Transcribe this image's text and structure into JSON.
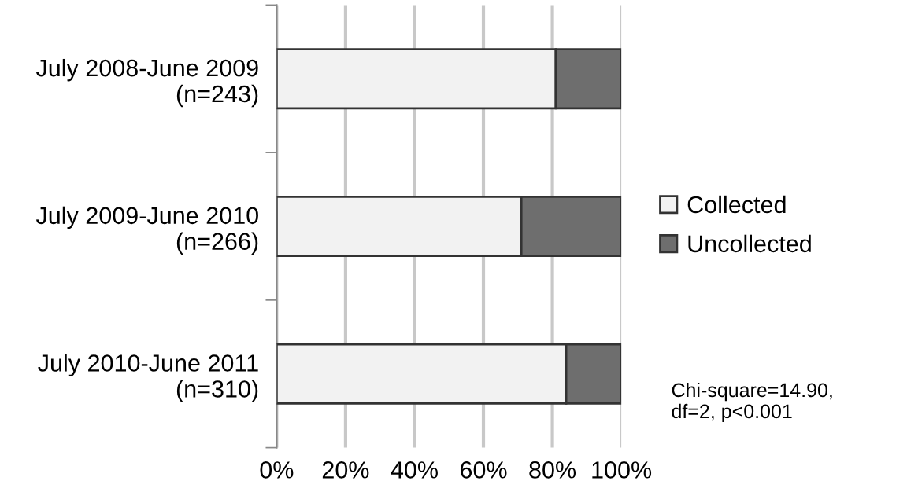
{
  "chart_data": {
    "type": "bar",
    "orientation": "horizontal",
    "stacked": true,
    "categories": [
      "July 2008-June 2009\n(n=243)",
      "July 2009-June 2010\n(n=266)",
      "July 2010-June 2011\n(n=310)"
    ],
    "series": [
      {
        "name": "Collected",
        "color": "#f2f2f2",
        "values": [
          81,
          71,
          84
        ]
      },
      {
        "name": "Uncollected",
        "color": "#6e6e6e",
        "values": [
          19,
          29,
          16
        ]
      }
    ],
    "xlim": [
      0,
      100
    ],
    "xticks": [
      {
        "value": 0,
        "label": "0%"
      },
      {
        "value": 20,
        "label": "20%"
      },
      {
        "value": 40,
        "label": "40%"
      },
      {
        "value": 60,
        "label": "60%"
      },
      {
        "value": 80,
        "label": "80%"
      },
      {
        "value": 100,
        "label": "100%"
      }
    ],
    "grid": "x",
    "legend": "right",
    "annotations": [
      "Chi-square=14.90,\ndf=2, p<0.001"
    ]
  }
}
